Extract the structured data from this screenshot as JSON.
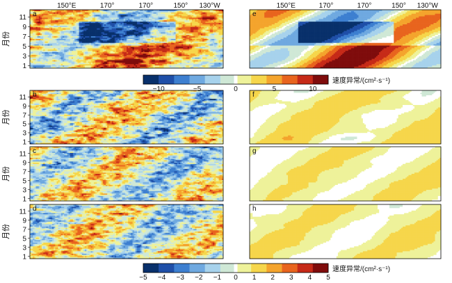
{
  "chart_data": [
    {
      "type": "heatmap",
      "group": "top",
      "x_tick_labels": [
        "150°E",
        "170°",
        "170°",
        "150°",
        "130°W"
      ],
      "y_label": "月份",
      "y_ticks": [
        1,
        3,
        5,
        7,
        9,
        11
      ],
      "panels": [
        {
          "label": "a",
          "pattern": "noisy",
          "amp": 10
        },
        {
          "label": "e",
          "pattern": "smooth",
          "amp": 12,
          "zero_contours": true
        }
      ],
      "colorbar": {
        "ticks": [
          -10,
          -5,
          0,
          5,
          10
        ],
        "range": [
          -12,
          12
        ],
        "label": "速度异常/(cm²·s⁻¹)"
      }
    },
    {
      "type": "heatmap",
      "group": "bottom",
      "y_label": "月份",
      "y_ticks": [
        1,
        3,
        5,
        7,
        9,
        11
      ],
      "panels": [
        {
          "label": "b",
          "pattern": "noisy",
          "amp": 4.5
        },
        {
          "label": "c",
          "pattern": "noisy",
          "amp": 4
        },
        {
          "label": "d",
          "pattern": "noisy",
          "amp": 4
        },
        {
          "label": "f",
          "pattern": "smooth",
          "amp": 2,
          "zero_contours": true
        },
        {
          "label": "g",
          "pattern": "smooth",
          "amp": 1.5,
          "zero_contours": true
        },
        {
          "label": "h",
          "pattern": "smooth",
          "amp": 1.5,
          "zero_contours": true
        }
      ],
      "colorbar": {
        "ticks": [
          -5,
          -4,
          -3,
          -2,
          -1,
          0,
          1,
          2,
          3,
          4,
          5
        ],
        "range": [
          -5,
          5
        ],
        "label": "速度异常/(cm²·s⁻¹)"
      }
    }
  ],
  "colormap": [
    "#08306b",
    "#1f4fa8",
    "#3d7fd0",
    "#6fa9e0",
    "#a7d2ec",
    "#cfe8d6",
    "#eef29a",
    "#f6d64b",
    "#f4a42d",
    "#e8641e",
    "#c62a18",
    "#7f0c0c"
  ]
}
